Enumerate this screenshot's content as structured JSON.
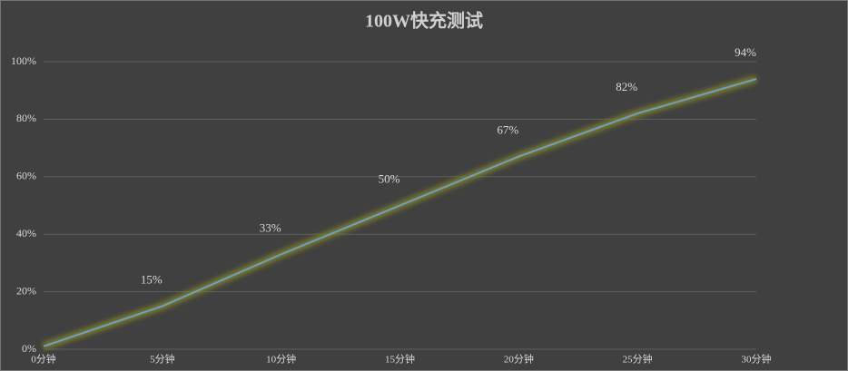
{
  "chart_data": {
    "type": "line",
    "title": "100W快充测试",
    "categories": [
      "0分钟",
      "5分钟",
      "10分钟",
      "15分钟",
      "20分钟",
      "25分钟",
      "30分钟"
    ],
    "series": [
      {
        "color": "#6f9fbf",
        "values": [
          1,
          15,
          33,
          50,
          67,
          82,
          94
        ],
        "value_labels": [
          null,
          "15%",
          "33%",
          "50%",
          "67%",
          "82%",
          "94%"
        ]
      }
    ],
    "ylim": [
      0,
      100
    ],
    "yticks": [
      {
        "value": 0,
        "label": "0%"
      },
      {
        "value": 20,
        "label": "20%"
      },
      {
        "value": 40,
        "label": "40%"
      },
      {
        "value": 60,
        "label": "60%"
      },
      {
        "value": 80,
        "label": "80%"
      },
      {
        "value": 100,
        "label": "100%"
      }
    ],
    "grid": true
  }
}
